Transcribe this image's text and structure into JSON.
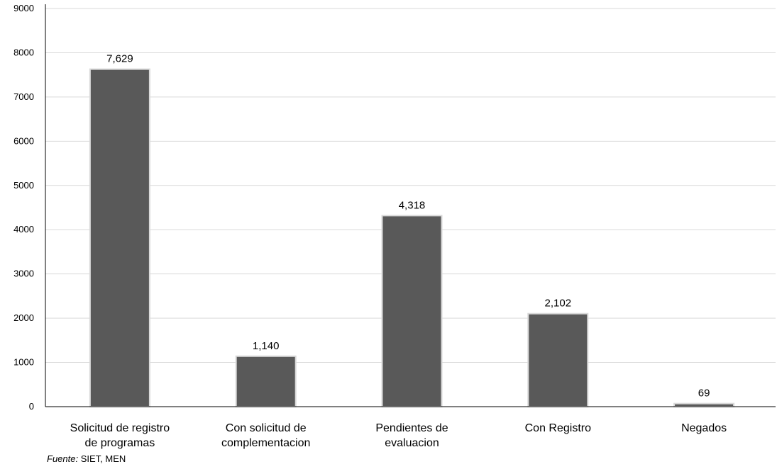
{
  "chart_data": {
    "type": "bar",
    "categories": [
      [
        "Solicitud de registro",
        "de programas"
      ],
      [
        "Con solicitud de",
        "complementacion"
      ],
      [
        "Pendientes de",
        "evaluacion"
      ],
      [
        "Con Registro"
      ],
      [
        "Negados"
      ]
    ],
    "values": [
      7629,
      1140,
      4318,
      2102,
      69
    ],
    "data_labels": [
      "7,629",
      "1,140",
      "4,318",
      "2,102",
      "69"
    ],
    "yticks": [
      "0",
      "1000",
      "2000",
      "3000",
      "4000",
      "5000",
      "6000",
      "7000",
      "8000",
      "9000"
    ],
    "ylim": [
      0,
      9000
    ],
    "grid": true,
    "bar_color": "#595959",
    "bar_border_color": "#d9d9d9"
  },
  "source": {
    "prefix": "Fuente:",
    "text": " SIET, MEN"
  }
}
